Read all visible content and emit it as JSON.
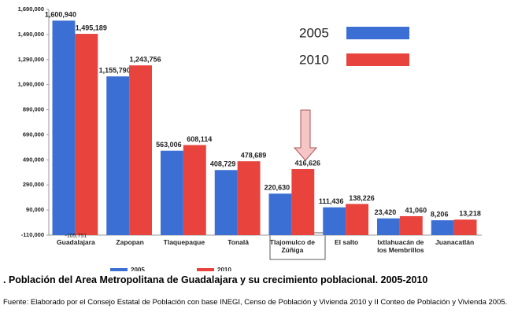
{
  "chart_data": {
    "type": "bar",
    "title": ". Población del Area Metropolitana de Guadalajara y su crecimiento poblacional. 2005-2010",
    "source": "Fuente: Elaborado por el Consejo Estatal de Población con base INEGI, Censo de Población y Vivienda 2010 y II Conteo de Población y Vivienda 2005.",
    "annotation": "-105,751",
    "categories": [
      "Guadalajara",
      "Zapopan",
      "Tlaquepaque",
      "Tonalá",
      "Tlajomulco de Zúñiga",
      "El salto",
      "Ixtlahuacán de los Membrillos",
      "Juanacatlán"
    ],
    "series": [
      {
        "name": "2005",
        "color": "#3b6fd4",
        "values": [
          1600940,
          1155790,
          563006,
          408729,
          220630,
          111436,
          23420,
          8206
        ],
        "value_labels": [
          "1,600,940",
          "1,155,790",
          "563,006",
          "408,729",
          "220,630",
          "111,436",
          "23,420",
          "8,206"
        ]
      },
      {
        "name": "2010",
        "color": "#e8433c",
        "values": [
          1495189,
          1243756,
          608114,
          478689,
          416626,
          138226,
          41060,
          13218
        ],
        "value_labels": [
          "1,495,189",
          "1,243,756",
          "608,114",
          "478,689",
          "416,626",
          "138,226",
          "41,060",
          "13,218"
        ]
      }
    ],
    "ylim": [
      -110000,
      1690000
    ],
    "yticks": [
      {
        "value": -110000,
        "label": "-110,000"
      },
      {
        "value": 90000,
        "label": "90,000"
      },
      {
        "value": 290000,
        "label": "290,000"
      },
      {
        "value": 490000,
        "label": "490,000"
      },
      {
        "value": 690000,
        "label": "690,000"
      },
      {
        "value": 890000,
        "label": "890,000"
      },
      {
        "value": 1090000,
        "label": "1,090,000"
      },
      {
        "value": 1290000,
        "label": "1,290,000"
      },
      {
        "value": 1490000,
        "label": "1,490,000"
      },
      {
        "value": 1690000,
        "label": "1,690,000"
      }
    ],
    "grid": false
  }
}
